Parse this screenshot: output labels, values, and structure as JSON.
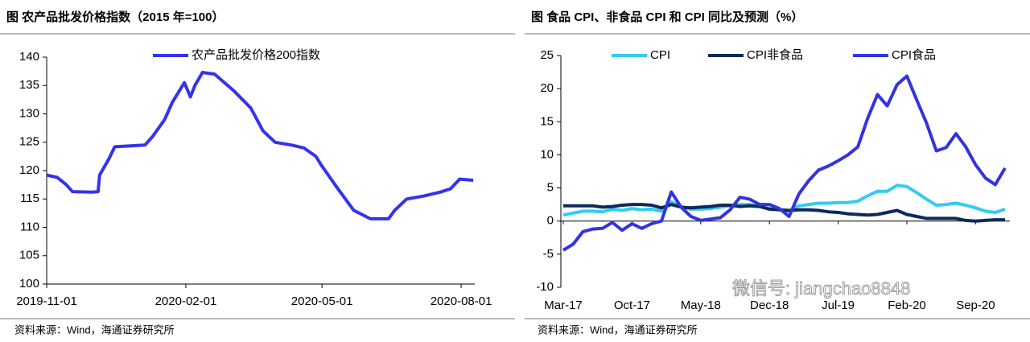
{
  "chart_data": [
    {
      "type": "line",
      "title": "图  农产品批发价格指数（2015 年=100）",
      "source": "资料来源：Wind，海通证券研究所",
      "x": [
        "2019-11-01",
        "2019-11-08",
        "2019-11-14",
        "2019-11-18",
        "2019-12-01",
        "2019-12-05",
        "2019-12-06",
        "2019-12-12",
        "2019-12-16",
        "2020-01-05",
        "2020-01-10",
        "2020-01-18",
        "2020-01-23",
        "2020-01-31",
        "2020-02-04",
        "2020-02-07",
        "2020-02-12",
        "2020-02-20",
        "2020-03-04",
        "2020-03-15",
        "2020-03-23",
        "2020-03-31",
        "2020-04-11",
        "2020-04-19",
        "2020-04-27",
        "2020-05-01",
        "2020-05-11",
        "2020-05-22",
        "2020-06-02",
        "2020-06-14",
        "2020-06-18",
        "2020-06-26",
        "2020-07-07",
        "2020-07-18",
        "2020-07-25",
        "2020-07-31",
        "2020-08-09"
      ],
      "series": [
        {
          "name": "农产品批发价格200指数",
          "color": "#3333ee",
          "values": [
            119.2,
            118.8,
            117.5,
            116.3,
            116.2,
            116.3,
            119.2,
            122.0,
            124.2,
            124.5,
            126.0,
            129.0,
            132.0,
            135.5,
            133.0,
            135.0,
            137.3,
            137.0,
            134.0,
            131.0,
            127.0,
            125.0,
            124.5,
            124.0,
            122.5,
            120.8,
            117.0,
            113.0,
            111.5,
            111.5,
            113.0,
            115.0,
            115.5,
            116.2,
            116.8,
            118.5,
            118.3
          ]
        }
      ],
      "xlim": [
        "2019-11-01",
        "2020-08-10"
      ],
      "xticks": [
        "2019-11-01",
        "2020-02-01",
        "2020-05-01",
        "2020-08-01"
      ],
      "ylim": [
        100,
        140
      ],
      "yticks": [
        100,
        105,
        110,
        115,
        120,
        125,
        130,
        135,
        140
      ]
    },
    {
      "type": "line",
      "title": "图  食品 CPI、非食品 CPI 和 CPI 同比及预测（%）",
      "source": "资料来源：Wind，海通证券研究所",
      "watermark": "微信号: jiangchao8848",
      "categories": [
        "Mar-17",
        null,
        null,
        null,
        null,
        null,
        null,
        "Oct-17",
        null,
        null,
        null,
        null,
        null,
        null,
        "May-18",
        null,
        null,
        null,
        null,
        null,
        null,
        "Dec-18",
        null,
        null,
        null,
        null,
        null,
        null,
        "Jul-19",
        null,
        null,
        null,
        null,
        null,
        null,
        "Feb-20",
        null,
        null,
        null,
        null,
        null,
        null,
        "Sep-20",
        null,
        null,
        null
      ],
      "series": [
        {
          "name": "CPI",
          "color": "#33ccee",
          "values": [
            0.9,
            1.2,
            1.5,
            1.5,
            1.4,
            1.8,
            1.6,
            1.9,
            1.7,
            1.8,
            1.5,
            2.9,
            2.1,
            1.8,
            1.8,
            1.9,
            2.1,
            2.3,
            2.5,
            2.5,
            2.2,
            1.9,
            1.7,
            1.5,
            2.3,
            2.5,
            2.7,
            2.7,
            2.8,
            2.8,
            3.0,
            3.8,
            4.5,
            4.5,
            5.4,
            5.2,
            4.3,
            3.3,
            2.4,
            2.5,
            2.7,
            2.4,
            2.0,
            1.5,
            1.3,
            1.8
          ]
        },
        {
          "name": "CPI非食品",
          "color": "#0d2a5a",
          "values": [
            2.3,
            2.3,
            2.3,
            2.3,
            2.1,
            2.2,
            2.4,
            2.5,
            2.5,
            2.4,
            2.0,
            2.5,
            2.1,
            2.0,
            2.1,
            2.2,
            2.4,
            2.4,
            2.2,
            2.3,
            2.2,
            1.8,
            1.7,
            1.6,
            1.7,
            1.7,
            1.6,
            1.4,
            1.3,
            1.1,
            1.0,
            0.9,
            1.0,
            1.3,
            1.6,
            1.0,
            0.7,
            0.4,
            0.4,
            0.4,
            0.4,
            0.1,
            0.0,
            0.1,
            0.2,
            0.2
          ]
        },
        {
          "name": "CPI食品",
          "color": "#3333e0",
          "values": [
            -4.4,
            -3.5,
            -1.6,
            -1.2,
            -1.1,
            -0.2,
            -1.4,
            -0.4,
            -1.1,
            -0.4,
            0.0,
            4.4,
            2.1,
            0.7,
            0.1,
            0.3,
            0.5,
            1.7,
            3.6,
            3.3,
            2.5,
            2.5,
            1.9,
            0.7,
            4.1,
            6.1,
            7.7,
            8.3,
            9.1,
            10.0,
            11.2,
            15.5,
            19.1,
            17.4,
            20.6,
            21.9,
            18.3,
            14.8,
            10.6,
            11.1,
            13.2,
            11.2,
            8.5,
            6.5,
            5.5,
            8.0
          ]
        }
      ],
      "ylim": [
        -10,
        25
      ],
      "yticks": [
        -10,
        -5,
        0,
        5,
        10,
        15,
        20,
        25
      ]
    }
  ]
}
